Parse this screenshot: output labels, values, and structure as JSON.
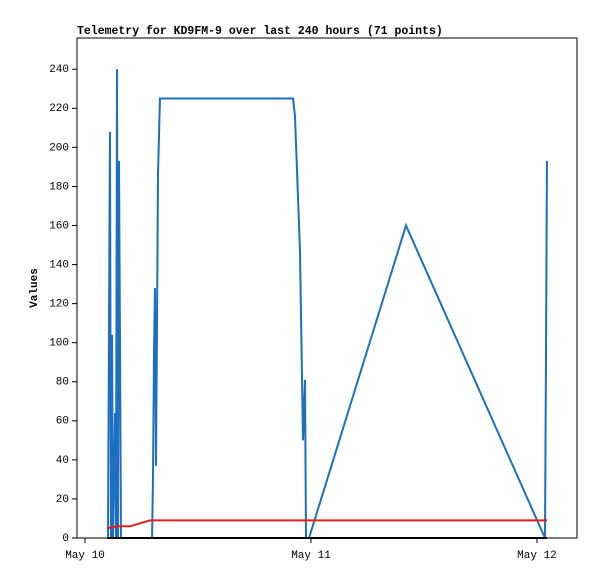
{
  "chart_data": {
    "type": "line",
    "title": "Telemetry for KD9FM-9 over last 240 hours (71 points)",
    "y_label": "Values",
    "xlim": [
      -0.85,
      52.25
    ],
    "xticks": [
      {
        "value": 0,
        "label": "May 10"
      },
      {
        "value": 24,
        "label": "May 11"
      },
      {
        "value": 48,
        "label": "May 12"
      }
    ],
    "ylim": [
      0,
      256
    ],
    "yticks": [
      0,
      20,
      40,
      60,
      80,
      100,
      120,
      140,
      160,
      180,
      200,
      220,
      240
    ],
    "series": [
      {
        "color": "#1f6fc0",
        "x": [
          2.44,
          2.65,
          2.76,
          2.87,
          2.97,
          3.19,
          3.29,
          3.4,
          3.5,
          3.61,
          3.72,
          3.82,
          7.12,
          7.22,
          7.33,
          7.43,
          7.54,
          7.65,
          7.75,
          7.96,
          22.09,
          22.3,
          22.83,
          23.15,
          23.36,
          23.47,
          23.79,
          34.09,
          48.85,
          48.96,
          49.06
        ],
        "values": [
          0,
          208,
          0,
          104,
          0,
          64,
          0,
          240,
          0,
          193,
          96,
          0,
          0,
          31,
          96,
          128,
          37,
          112,
          186,
          225,
          225,
          216,
          147,
          50,
          81,
          0,
          0,
          160,
          0,
          96,
          193
        ]
      },
      {
        "color": "#e0201a",
        "x": [
          2.34,
          3.5,
          4.78,
          6.9,
          49.06
        ],
        "values": [
          5,
          6,
          6,
          9,
          9
        ]
      },
      {
        "color": "#000000",
        "x": [
          2.34,
          49.06
        ],
        "values": [
          0,
          0
        ]
      }
    ]
  }
}
